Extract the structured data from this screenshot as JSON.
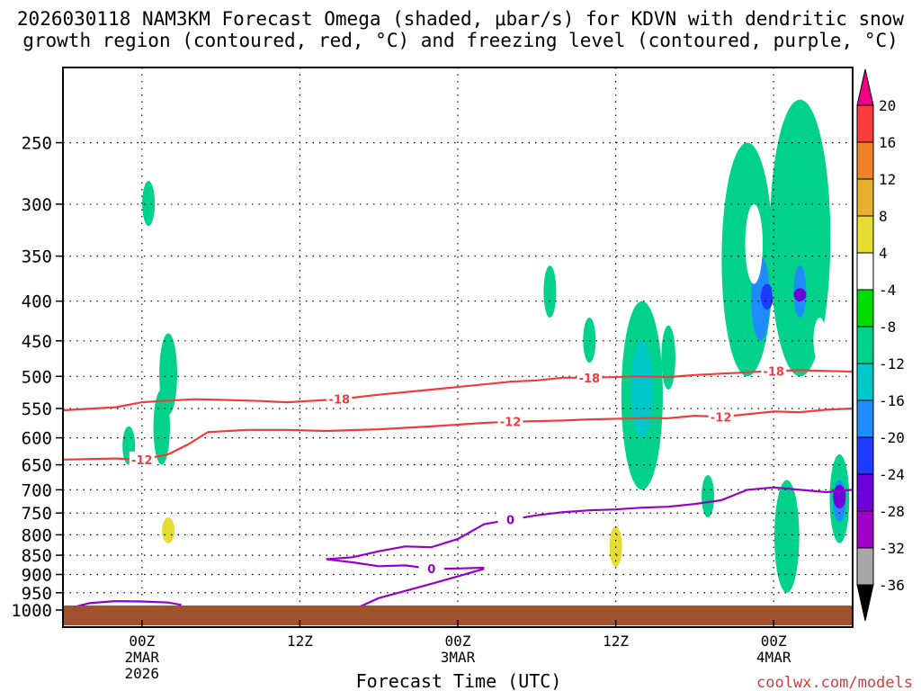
{
  "chart_data": {
    "type": "heatmap",
    "title_line1": "2026030118 NAM3KM Forecast Omega (shaded, μbar/s) for KDVN with dendritic snow",
    "title_line2": "growth region (contoured, red, °C) and freezing level (contoured, purple, °C)",
    "xlabel": "Forecast Time (UTC)",
    "watermark": "coolwx.com/models",
    "y_axis": {
      "unit": "hPa",
      "log_scale": true,
      "ylim": [
        1000,
        200
      ],
      "ticks": [
        250,
        300,
        350,
        400,
        450,
        500,
        550,
        600,
        650,
        700,
        750,
        800,
        850,
        900,
        950,
        1000
      ]
    },
    "x_axis": {
      "unit": "forecast hour",
      "xlim": [
        0,
        60
      ],
      "ticks": [
        {
          "hour": 6,
          "label": "00Z",
          "date": "2MAR",
          "year": "2026"
        },
        {
          "hour": 18,
          "label": "12Z",
          "date": "",
          "year": ""
        },
        {
          "hour": 30,
          "label": "00Z",
          "date": "3MAR",
          "year": ""
        },
        {
          "hour": 42,
          "label": "12Z",
          "date": "",
          "year": ""
        },
        {
          "hour": 54,
          "label": "00Z",
          "date": "4MAR",
          "year": ""
        }
      ]
    },
    "colorbar": {
      "levels": [
        "-36",
        "-32",
        "-28",
        "-24",
        "-20",
        "-16",
        "-12",
        "-8",
        "-4",
        "4",
        "8",
        "12",
        "16",
        "20"
      ],
      "colors": [
        "#000000",
        "#a8a8a8",
        "#a000c8",
        "#6e00dc",
        "#1e3cff",
        "#1e8cff",
        "#00c8c8",
        "#00d28c",
        "#00dc00",
        "#ffffff",
        "#e6dc32",
        "#e6af2d",
        "#f08228",
        "#fa3c3c",
        "#f00082"
      ]
    },
    "contours": {
      "dgz_color": "#f03c3c",
      "freezing_color": "#9600c8",
      "dgz_minus18": {
        "label": "-18",
        "points": [
          [
            0,
            553
          ],
          [
            4,
            548
          ],
          [
            6,
            540
          ],
          [
            7.5,
            538
          ],
          [
            10,
            535
          ],
          [
            12,
            536
          ],
          [
            15,
            538
          ],
          [
            17,
            540
          ],
          [
            21,
            535
          ],
          [
            24,
            528
          ],
          [
            28,
            520
          ],
          [
            32,
            512
          ],
          [
            34,
            508
          ],
          [
            36,
            506
          ],
          [
            38,
            502
          ],
          [
            40,
            502
          ],
          [
            44,
            500
          ],
          [
            46,
            501
          ],
          [
            48,
            498
          ],
          [
            50,
            496
          ],
          [
            52,
            494
          ],
          [
            54,
            492
          ],
          [
            56,
            491
          ],
          [
            58,
            492
          ],
          [
            60,
            493
          ]
        ]
      },
      "dgz_minus12": {
        "label": "-12",
        "points": [
          [
            0,
            640
          ],
          [
            4,
            638
          ],
          [
            6,
            640
          ],
          [
            8,
            630
          ],
          [
            9.5,
            612
          ],
          [
            11,
            590
          ],
          [
            14,
            586
          ],
          [
            17,
            586
          ],
          [
            20,
            588
          ],
          [
            24,
            585
          ],
          [
            28,
            580
          ],
          [
            32,
            574
          ],
          [
            34,
            572
          ],
          [
            38,
            570
          ],
          [
            40,
            568
          ],
          [
            44,
            566
          ],
          [
            46,
            566
          ],
          [
            48,
            562
          ],
          [
            50,
            564
          ],
          [
            54,
            555
          ],
          [
            56,
            556
          ],
          [
            58,
            552
          ],
          [
            60,
            550
          ]
        ]
      },
      "freezing_0_upper": {
        "label": "0",
        "points": [
          [
            20,
            860
          ],
          [
            22,
            855
          ],
          [
            24,
            840
          ],
          [
            26,
            828
          ],
          [
            28,
            830
          ],
          [
            30,
            810
          ],
          [
            32,
            775
          ],
          [
            34,
            765
          ],
          [
            36,
            755
          ],
          [
            38,
            748
          ],
          [
            40,
            744
          ],
          [
            42,
            742
          ],
          [
            44,
            738
          ],
          [
            46,
            736
          ],
          [
            48,
            730
          ],
          [
            50,
            722
          ],
          [
            52,
            700
          ],
          [
            54,
            695
          ],
          [
            56,
            700
          ],
          [
            58,
            705
          ],
          [
            60,
            700
          ]
        ]
      },
      "freezing_0_lower": {
        "label": "0",
        "points": [
          [
            20,
            860
          ],
          [
            22,
            868
          ],
          [
            24,
            878
          ],
          [
            26,
            876
          ],
          [
            28,
            885
          ],
          [
            30,
            884
          ],
          [
            32,
            882
          ]
        ]
      },
      "freezing_surface": {
        "label": "",
        "points": [
          [
            0,
            1000
          ],
          [
            2,
            980
          ],
          [
            4,
            974
          ],
          [
            6,
            975
          ],
          [
            8,
            978
          ],
          [
            9,
            985
          ]
        ]
      },
      "freezing_surface2": {
        "label": "",
        "points": [
          [
            22,
            1000
          ],
          [
            24,
            965
          ],
          [
            26,
            945
          ],
          [
            28,
            925
          ],
          [
            30,
            905
          ],
          [
            32,
            885
          ]
        ]
      }
    },
    "omega_regions": [
      {
        "value": "-8",
        "t": 7.5,
        "p1": 520,
        "p2": 650
      },
      {
        "value": "-8",
        "t": 8,
        "p1": 440,
        "p2": 560
      },
      {
        "value": "-8",
        "t": 5,
        "p1": 580,
        "p2": 650
      },
      {
        "value": "-8",
        "t": 6.5,
        "p1": 280,
        "p2": 320
      },
      {
        "value": "4",
        "t": 10.5,
        "p1": 300,
        "p2": 400
      },
      {
        "value": "4",
        "t": 4,
        "p1": 690,
        "p2": 760
      },
      {
        "value": "4",
        "t": 9,
        "p1": 680,
        "p2": 850
      },
      {
        "value": "8",
        "t": 8,
        "p1": 760,
        "p2": 820
      },
      {
        "value": "4",
        "t": 14,
        "p1": 640,
        "p2": 700
      },
      {
        "value": "-8",
        "t": 37,
        "p1": 360,
        "p2": 420
      },
      {
        "value": "-8",
        "t": 40,
        "p1": 420,
        "p2": 480
      },
      {
        "value": "-8",
        "t": 44,
        "p1": 400,
        "p2": 700
      },
      {
        "value": "-12",
        "t": 44,
        "p1": 450,
        "p2": 600
      },
      {
        "value": "-8",
        "t": 46,
        "p1": 430,
        "p2": 520
      },
      {
        "value": "-8",
        "t": 49,
        "p1": 670,
        "p2": 760
      },
      {
        "value": "4",
        "t": 42,
        "p1": 650,
        "p2": 900
      },
      {
        "value": "8",
        "t": 42,
        "p1": 780,
        "p2": 880
      },
      {
        "value": "-8",
        "t": 52,
        "p1": 250,
        "p2": 500
      },
      {
        "value": "-16",
        "t": 53,
        "p1": 350,
        "p2": 450
      },
      {
        "value": "-20",
        "t": 53.5,
        "p1": 380,
        "p2": 410
      },
      {
        "value": "-8",
        "t": 56,
        "p1": 220,
        "p2": 500
      },
      {
        "value": "-16",
        "t": 56,
        "p1": 360,
        "p2": 420
      },
      {
        "value": "-24",
        "t": 56,
        "p1": 385,
        "p2": 400
      },
      {
        "value": "-8",
        "t": 55,
        "p1": 680,
        "p2": 950
      },
      {
        "value": "-8",
        "t": 59,
        "p1": 630,
        "p2": 820
      },
      {
        "value": "-16",
        "t": 59,
        "p1": 680,
        "p2": 770
      },
      {
        "value": "-24",
        "t": 59,
        "p1": 690,
        "p2": 740
      },
      {
        "value": "4",
        "t": 51,
        "p1": 550,
        "p2": 760
      },
      {
        "value": "4",
        "t": 52.5,
        "p1": 300,
        "p2": 380
      },
      {
        "value": "4",
        "t": 57.5,
        "p1": 420,
        "p2": 480
      },
      {
        "value": "4",
        "t": 57,
        "p1": 800,
        "p2": 880
      }
    ]
  }
}
